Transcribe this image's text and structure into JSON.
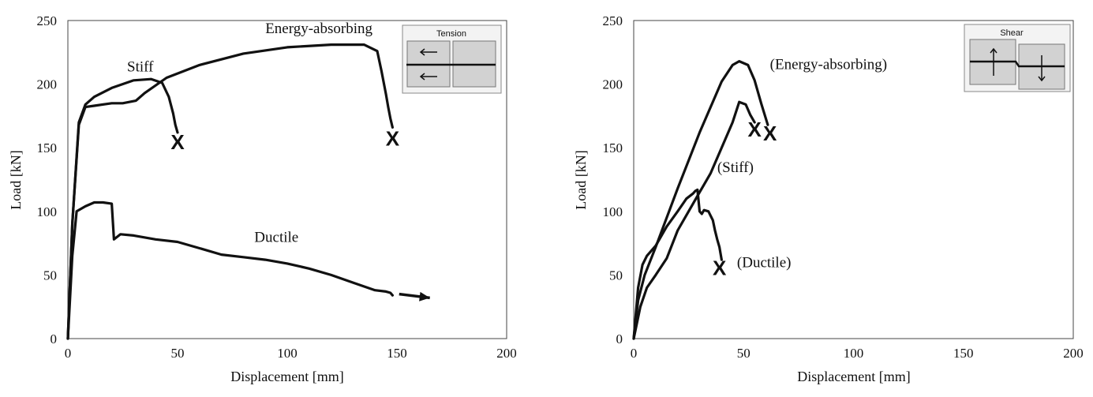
{
  "chart_data": [
    {
      "type": "line",
      "xlabel": "Displacement [mm]",
      "ylabel": "Load [kN]",
      "xlim": [
        0,
        200
      ],
      "ylim": [
        0,
        250
      ],
      "xticks": [
        "0",
        "50",
        "100",
        "150",
        "200"
      ],
      "yticks": [
        "0",
        "50",
        "100",
        "150",
        "200",
        "250"
      ],
      "grid": false,
      "inset_label": "Tension",
      "series": [
        {
          "name": "Stiff",
          "x": [
            0,
            2,
            5,
            8,
            12,
            20,
            30,
            38,
            43,
            46,
            48,
            49,
            50
          ],
          "y": [
            0,
            90,
            170,
            184,
            190,
            197,
            203,
            204,
            201,
            190,
            177,
            168,
            162
          ],
          "failure_x": 50,
          "failure_y": 155,
          "failure_mark": "X"
        },
        {
          "name": "Energy-absorbing",
          "x": [
            0,
            2,
            5,
            8,
            12,
            20,
            25,
            31,
            35,
            45,
            60,
            80,
            100,
            120,
            135,
            141,
            143,
            145,
            146,
            147,
            148
          ],
          "y": [
            0,
            90,
            168,
            182,
            183,
            185,
            185,
            187,
            193,
            205,
            215,
            224,
            229,
            231,
            231,
            226,
            210,
            192,
            182,
            173,
            166
          ],
          "failure_x": 148,
          "failure_y": 158,
          "failure_mark": "X"
        },
        {
          "name": "Ductile",
          "x": [
            0,
            2,
            4,
            8,
            12,
            16,
            20,
            21,
            24,
            30,
            40,
            50,
            60,
            70,
            80,
            90,
            100,
            110,
            120,
            130,
            140,
            145,
            147,
            148
          ],
          "y": [
            0,
            65,
            100,
            104,
            107,
            107,
            106,
            78,
            82,
            81,
            78,
            76,
            71,
            66,
            64,
            62,
            59,
            55,
            50,
            44,
            38,
            37,
            36,
            34
          ],
          "arrow_from": [
            151,
            35
          ],
          "arrow_to": [
            165,
            32
          ]
        }
      ],
      "annotations": [
        {
          "text": "Energy-absorbing",
          "x": 90,
          "y": 240
        },
        {
          "text": "Stiff",
          "x": 27,
          "y": 210
        },
        {
          "text": "Ductile",
          "x": 85,
          "y": 76
        }
      ]
    },
    {
      "type": "line",
      "xlabel": "Displacement [mm]",
      "ylabel": "Load [kN]",
      "xlim": [
        0,
        200
      ],
      "ylim": [
        0,
        250
      ],
      "xticks": [
        "0",
        "50",
        "100",
        "150",
        "200"
      ],
      "yticks": [
        "0",
        "50",
        "100",
        "150",
        "200",
        "250"
      ],
      "grid": false,
      "inset_label": "Shear",
      "series": [
        {
          "name": "(Energy-absorbing)",
          "x": [
            0,
            2,
            5,
            10,
            20,
            30,
            40,
            45,
            48,
            52,
            55,
            58,
            61
          ],
          "y": [
            0,
            30,
            50,
            72,
            118,
            162,
            202,
            215,
            218,
            215,
            203,
            185,
            168
          ],
          "failure_x": 62,
          "failure_y": 162,
          "failure_mark": "X"
        },
        {
          "name": "(Stiff)",
          "x": [
            0,
            3,
            6,
            10,
            15,
            20,
            25,
            30,
            35,
            40,
            45,
            48,
            51,
            53,
            55
          ],
          "y": [
            0,
            25,
            40,
            50,
            63,
            85,
            100,
            115,
            130,
            150,
            170,
            186,
            184,
            176,
            170
          ],
          "failure_x": 55,
          "failure_y": 165,
          "failure_mark": "X"
        },
        {
          "name": "(Ductile)",
          "x": [
            0,
            2,
            4,
            6,
            10,
            15,
            20,
            24,
            27,
            28,
            29,
            30,
            31,
            32,
            34,
            36,
            37,
            38,
            39,
            40
          ],
          "y": [
            0,
            40,
            58,
            65,
            73,
            88,
            100,
            110,
            114,
            116,
            117,
            100,
            98,
            101,
            100,
            93,
            85,
            78,
            72,
            62
          ],
          "failure_x": 39,
          "failure_y": 56,
          "failure_mark": "X"
        }
      ],
      "annotations": [
        {
          "text": "(Energy-absorbing)",
          "x": 62,
          "y": 212
        },
        {
          "text": "(Stiff)",
          "x": 38,
          "y": 131
        },
        {
          "text": "(Ductile)",
          "x": 47,
          "y": 56
        }
      ]
    }
  ]
}
